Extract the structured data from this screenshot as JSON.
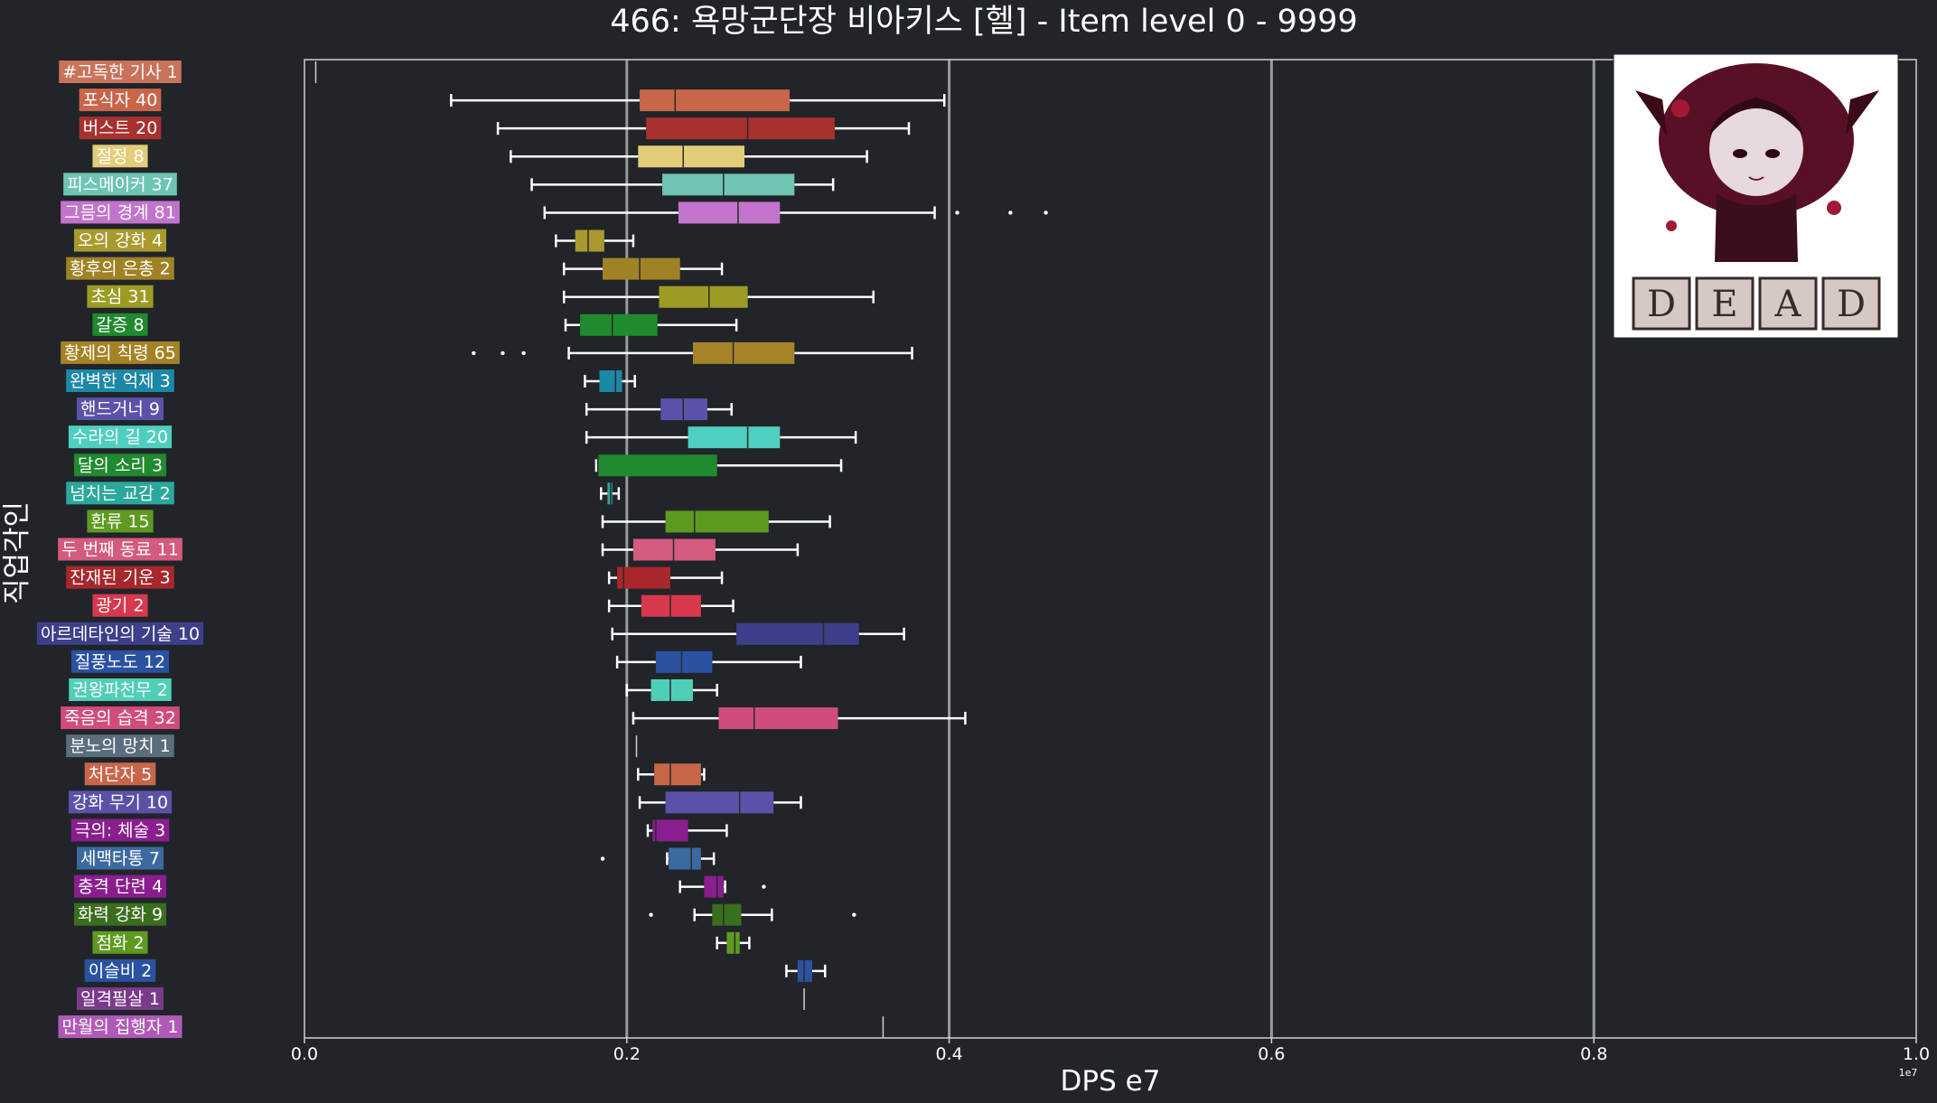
{
  "chart_data": {
    "type": "box",
    "title": "466: 욕망군단장 비아키스 [헬] - Item level 0 - 9999",
    "xlabel": "DPS e7",
    "ylabel": "직업각인",
    "x_scale_note": "1e7",
    "xlim": [
      0.0,
      1.0
    ],
    "xticks": [
      "0.0",
      "0.2",
      "0.4",
      "0.6",
      "0.8",
      "1.0"
    ],
    "grid": "vertical major gridlines",
    "image_position": "top-right",
    "image_caption": "DEAD",
    "categories": [
      {
        "label": "#고독한 기사 1",
        "color": "#c8735a",
        "min": 0.007,
        "q1": 0.007,
        "median": 0.007,
        "q3": 0.007,
        "max": 0.007,
        "outliers": []
      },
      {
        "label": "포식자 40",
        "color": "#c8664a",
        "min": 0.091,
        "q1": 0.208,
        "median": 0.23,
        "q3": 0.301,
        "max": 0.397,
        "outliers": []
      },
      {
        "label": "버스트 20",
        "color": "#a7312e",
        "min": 0.12,
        "q1": 0.212,
        "median": 0.275,
        "q3": 0.329,
        "max": 0.375,
        "outliers": []
      },
      {
        "label": "절정 8",
        "color": "#e4cd78",
        "min": 0.128,
        "q1": 0.207,
        "median": 0.235,
        "q3": 0.273,
        "max": 0.349,
        "outliers": []
      },
      {
        "label": "피스메이커 37",
        "color": "#6fc4b4",
        "min": 0.141,
        "q1": 0.222,
        "median": 0.26,
        "q3": 0.304,
        "max": 0.328,
        "outliers": []
      },
      {
        "label": "그믐의 경계 81",
        "color": "#c274cc",
        "min": 0.149,
        "q1": 0.232,
        "median": 0.269,
        "q3": 0.295,
        "max": 0.391,
        "outliers": [
          0.405,
          0.438,
          0.46
        ]
      },
      {
        "label": "오의 강화 4",
        "color": "#a89a2e",
        "min": 0.156,
        "q1": 0.168,
        "median": 0.176,
        "q3": 0.186,
        "max": 0.204,
        "outliers": []
      },
      {
        "label": "황후의 은총 2",
        "color": "#a08226",
        "min": 0.161,
        "q1": 0.185,
        "median": 0.208,
        "q3": 0.233,
        "max": 0.259,
        "outliers": []
      },
      {
        "label": "초심 31",
        "color": "#9c9c24",
        "min": 0.161,
        "q1": 0.22,
        "median": 0.251,
        "q3": 0.275,
        "max": 0.353,
        "outliers": []
      },
      {
        "label": "갈증 8",
        "color": "#1f8a2e",
        "min": 0.162,
        "q1": 0.171,
        "median": 0.191,
        "q3": 0.219,
        "max": 0.268,
        "outliers": []
      },
      {
        "label": "황제의 칙령 65",
        "color": "#a68226",
        "min": 0.164,
        "q1": 0.241,
        "median": 0.266,
        "q3": 0.304,
        "max": 0.377,
        "outliers": [
          0.105,
          0.123,
          0.136
        ]
      },
      {
        "label": "완벽한 억제 3",
        "color": "#1b88a8",
        "min": 0.174,
        "q1": 0.183,
        "median": 0.193,
        "q3": 0.197,
        "max": 0.205,
        "outliers": []
      },
      {
        "label": "핸드거너 9",
        "color": "#5a52a8",
        "min": 0.175,
        "q1": 0.221,
        "median": 0.235,
        "q3": 0.25,
        "max": 0.265,
        "outliers": []
      },
      {
        "label": "수라의 길 20",
        "color": "#4fcfbf",
        "min": 0.175,
        "q1": 0.238,
        "median": 0.275,
        "q3": 0.295,
        "max": 0.342,
        "outliers": []
      },
      {
        "label": "달의 소리 3",
        "color": "#1f8a2e",
        "min": 0.181,
        "q1": 0.182,
        "median": 0.182,
        "q3": 0.256,
        "max": 0.333,
        "outliers": []
      },
      {
        "label": "넘치는 교감 2",
        "color": "#2aa89c",
        "min": 0.184,
        "q1": 0.188,
        "median": 0.19,
        "q3": 0.191,
        "max": 0.195,
        "outliers": []
      },
      {
        "label": "환류 15",
        "color": "#5e9a1f",
        "min": 0.185,
        "q1": 0.224,
        "median": 0.242,
        "q3": 0.288,
        "max": 0.326,
        "outliers": []
      },
      {
        "label": "두 번째 동료 11",
        "color": "#d45a7e",
        "min": 0.185,
        "q1": 0.204,
        "median": 0.229,
        "q3": 0.255,
        "max": 0.306,
        "outliers": []
      },
      {
        "label": "잔재된 기운 3",
        "color": "#a8272c",
        "min": 0.189,
        "q1": 0.194,
        "median": 0.198,
        "q3": 0.227,
        "max": 0.259,
        "outliers": []
      },
      {
        "label": "광기 2",
        "color": "#d8384c",
        "min": 0.189,
        "q1": 0.209,
        "median": 0.227,
        "q3": 0.246,
        "max": 0.266,
        "outliers": []
      },
      {
        "label": "아르데타인의 기술 10",
        "color": "#3e3f8a",
        "min": 0.191,
        "q1": 0.268,
        "median": 0.322,
        "q3": 0.344,
        "max": 0.372,
        "outliers": []
      },
      {
        "label": "질풍노도 12",
        "color": "#2a52a0",
        "min": 0.194,
        "q1": 0.218,
        "median": 0.234,
        "q3": 0.253,
        "max": 0.308,
        "outliers": []
      },
      {
        "label": "권왕파천무 2",
        "color": "#4fcfb8",
        "min": 0.2,
        "q1": 0.215,
        "median": 0.227,
        "q3": 0.241,
        "max": 0.256,
        "outliers": []
      },
      {
        "label": "죽음의 습격 32",
        "color": "#d04c7c",
        "min": 0.204,
        "q1": 0.257,
        "median": 0.279,
        "q3": 0.331,
        "max": 0.41,
        "outliers": []
      },
      {
        "label": "분노의 망치 1",
        "color": "#5a6e7e",
        "min": 0.206,
        "q1": 0.206,
        "median": 0.206,
        "q3": 0.206,
        "max": 0.206,
        "outliers": []
      },
      {
        "label": "처단자 5",
        "color": "#c8664a",
        "min": 0.207,
        "q1": 0.217,
        "median": 0.227,
        "q3": 0.246,
        "max": 0.248,
        "outliers": []
      },
      {
        "label": "강화 무기 10",
        "color": "#5a52a8",
        "min": 0.208,
        "q1": 0.224,
        "median": 0.27,
        "q3": 0.291,
        "max": 0.308,
        "outliers": []
      },
      {
        "label": "극의: 체술 3",
        "color": "#8a1e8e",
        "min": 0.213,
        "q1": 0.216,
        "median": 0.218,
        "q3": 0.238,
        "max": 0.262,
        "outliers": []
      },
      {
        "label": "세맥타통 7",
        "color": "#3c6aa0",
        "min": 0.225,
        "q1": 0.226,
        "median": 0.24,
        "q3": 0.246,
        "max": 0.254,
        "outliers": [
          0.185
        ]
      },
      {
        "label": "충격 단련 4",
        "color": "#8a1e8e",
        "min": 0.233,
        "q1": 0.248,
        "median": 0.256,
        "q3": 0.26,
        "max": 0.261,
        "outliers": [
          0.285
        ]
      },
      {
        "label": "화력 강화 9",
        "color": "#3a6e1f",
        "min": 0.242,
        "q1": 0.253,
        "median": 0.26,
        "q3": 0.271,
        "max": 0.29,
        "outliers": [
          0.215,
          0.341
        ]
      },
      {
        "label": "점화 2",
        "color": "#5e9a1f",
        "min": 0.256,
        "q1": 0.262,
        "median": 0.267,
        "q3": 0.27,
        "max": 0.276,
        "outliers": []
      },
      {
        "label": "이슬비 2",
        "color": "#2a52a0",
        "min": 0.299,
        "q1": 0.306,
        "median": 0.31,
        "q3": 0.315,
        "max": 0.323,
        "outliers": []
      },
      {
        "label": "일격필살 1",
        "color": "#7a3a8a",
        "min": 0.31,
        "q1": 0.31,
        "median": 0.31,
        "q3": 0.31,
        "max": 0.31,
        "outliers": []
      },
      {
        "label": "만월의 집행자 1",
        "color": "#b05ab8",
        "min": 0.359,
        "q1": 0.359,
        "median": 0.359,
        "q3": 0.359,
        "max": 0.359,
        "outliers": []
      }
    ]
  }
}
